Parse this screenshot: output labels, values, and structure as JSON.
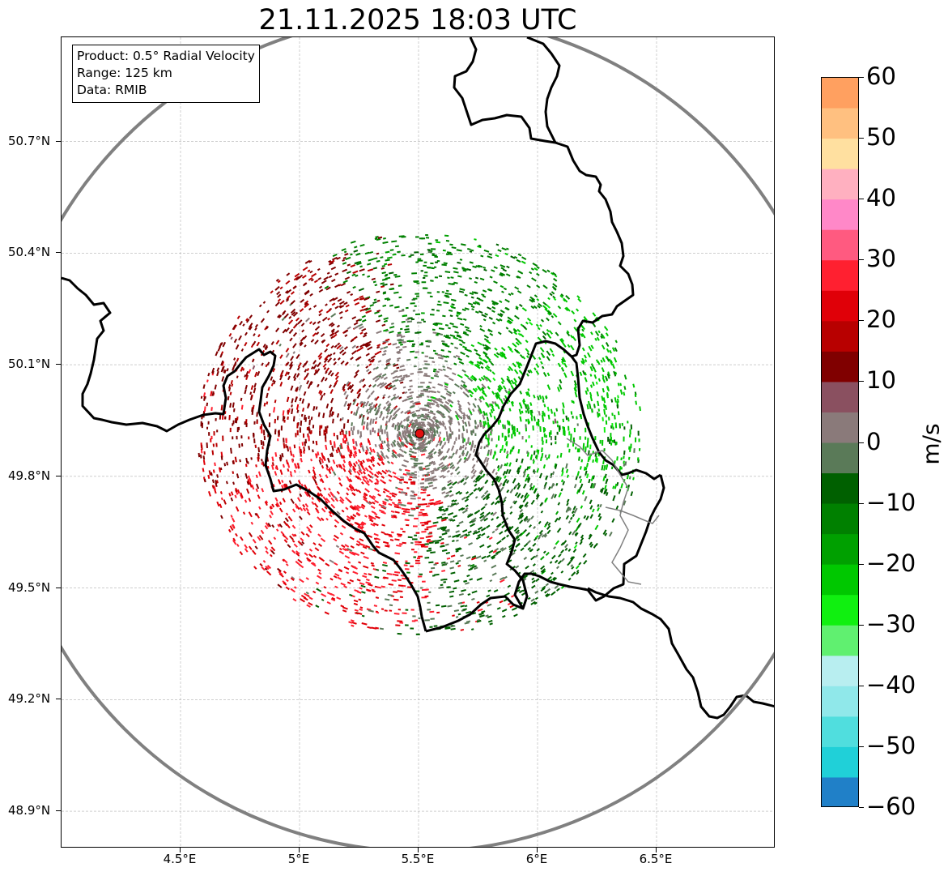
{
  "title": "21.11.2025 18:03 UTC",
  "info_box": {
    "product": "Product: 0.5° Radial Velocity",
    "range": "Range: 125 km",
    "data": "Data: RMIB"
  },
  "map": {
    "lon_range": [
      4.0,
      7.0
    ],
    "lat_range": [
      48.8,
      50.98
    ],
    "radar_site": {
      "lon": 5.505,
      "lat": 49.915
    },
    "range_ring_km": 125,
    "range_ring_color": "#808080",
    "radar_marker_color": "#e01010",
    "lat_ticks": [
      {
        "value": 50.7,
        "label": "50.7°N"
      },
      {
        "value": 50.4,
        "label": "50.4°N"
      },
      {
        "value": 50.1,
        "label": "50.1°N"
      },
      {
        "value": 49.8,
        "label": "49.8°N"
      },
      {
        "value": 49.5,
        "label": "49.5°N"
      },
      {
        "value": 49.2,
        "label": "49.2°N"
      },
      {
        "value": 48.9,
        "label": "48.9°N"
      }
    ],
    "lon_ticks": [
      {
        "value": 4.5,
        "label": "4.5°E"
      },
      {
        "value": 5.0,
        "label": "5°E"
      },
      {
        "value": 5.5,
        "label": "5.5°E"
      },
      {
        "value": 6.0,
        "label": "6°E"
      },
      {
        "value": 6.5,
        "label": "6.5°E"
      }
    ],
    "gridlines": true,
    "echo_regions": [
      {
        "lon": 5.0,
        "lat": 50.07,
        "velocity": 14
      },
      {
        "lon": 5.25,
        "lat": 49.72,
        "velocity": 25
      },
      {
        "lon": 5.7,
        "lat": 50.3,
        "velocity": -12
      },
      {
        "lon": 6.0,
        "lat": 50.05,
        "velocity": -22
      },
      {
        "lon": 5.9,
        "lat": 49.6,
        "velocity": -6
      },
      {
        "lon": 5.5,
        "lat": 49.95,
        "velocity": 1
      }
    ]
  },
  "colorbar": {
    "unit": "m/s",
    "min": -60,
    "max": 60,
    "ticks": [
      {
        "value": 60,
        "label": "60"
      },
      {
        "value": 50,
        "label": "50"
      },
      {
        "value": 40,
        "label": "40"
      },
      {
        "value": 30,
        "label": "30"
      },
      {
        "value": 20,
        "label": "20"
      },
      {
        "value": 10,
        "label": "10"
      },
      {
        "value": 0,
        "label": "0"
      },
      {
        "value": -10,
        "label": "−10"
      },
      {
        "value": -20,
        "label": "−20"
      },
      {
        "value": -30,
        "label": "−30"
      },
      {
        "value": -40,
        "label": "−40"
      },
      {
        "value": -50,
        "label": "−50"
      },
      {
        "value": -60,
        "label": "−60"
      }
    ],
    "color_stops": [
      {
        "from": 55,
        "to": 60,
        "color": "#ffa060"
      },
      {
        "from": 50,
        "to": 55,
        "color": "#ffc080"
      },
      {
        "from": 45,
        "to": 50,
        "color": "#ffe0a0"
      },
      {
        "from": 40,
        "to": 45,
        "color": "#ffb0c0"
      },
      {
        "from": 35,
        "to": 40,
        "color": "#ff88c8"
      },
      {
        "from": 30,
        "to": 35,
        "color": "#ff5a80"
      },
      {
        "from": 25,
        "to": 30,
        "color": "#ff2030"
      },
      {
        "from": 20,
        "to": 25,
        "color": "#e00008"
      },
      {
        "from": 15,
        "to": 20,
        "color": "#b80000"
      },
      {
        "from": 10,
        "to": 15,
        "color": "#800000"
      },
      {
        "from": 5,
        "to": 10,
        "color": "#8a5060"
      },
      {
        "from": 0,
        "to": 5,
        "color": "#8a7a7a"
      },
      {
        "from": -5,
        "to": 0,
        "color": "#5a7a58"
      },
      {
        "from": -10,
        "to": -5,
        "color": "#006000"
      },
      {
        "from": -15,
        "to": -10,
        "color": "#008000"
      },
      {
        "from": -20,
        "to": -15,
        "color": "#00a000"
      },
      {
        "from": -25,
        "to": -20,
        "color": "#00c800"
      },
      {
        "from": -30,
        "to": -25,
        "color": "#10f010"
      },
      {
        "from": -35,
        "to": -30,
        "color": "#60f070"
      },
      {
        "from": -40,
        "to": -35,
        "color": "#b8eef0"
      },
      {
        "from": -45,
        "to": -40,
        "color": "#90e8ea"
      },
      {
        "from": -50,
        "to": -45,
        "color": "#50dede"
      },
      {
        "from": -55,
        "to": -50,
        "color": "#20d0d8"
      },
      {
        "from": -60,
        "to": -55,
        "color": "#2080c8"
      }
    ]
  }
}
